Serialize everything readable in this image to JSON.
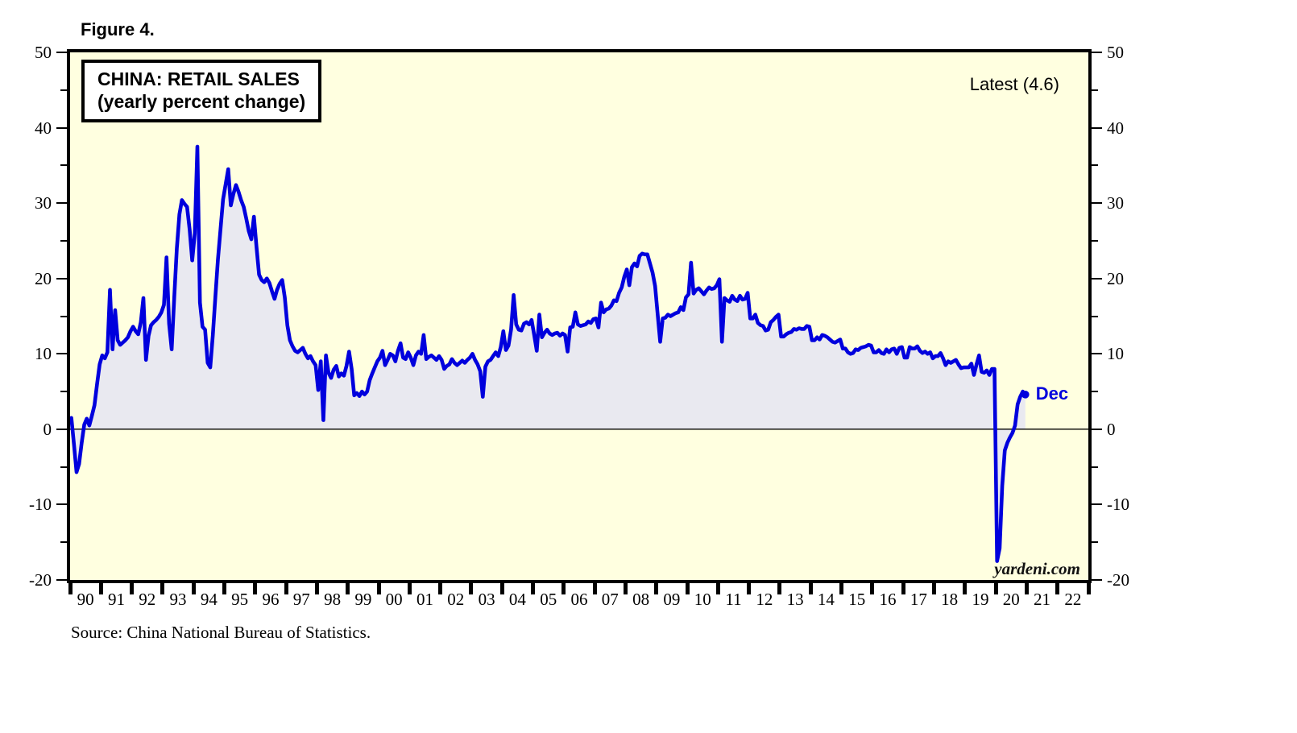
{
  "figure_label": "Figure 4.",
  "source_note": "Source: China National Bureau of Statistics.",
  "chart_data": {
    "type": "line",
    "title": "CHINA: RETAIL SALES",
    "subtitle": "(yearly percent change)",
    "annotation_latest": "Latest (4.6)",
    "latest_value": 4.6,
    "last_point_label": "Dec",
    "watermark": "yardeni.com",
    "legend": "none",
    "grid": "zero baseline only",
    "ylim": [
      -20,
      50
    ],
    "y_major_tick_step": 10,
    "y_minor_tick_step": 5,
    "y_major_ticks": [
      50,
      40,
      30,
      20,
      10,
      0,
      -10,
      -20
    ],
    "x_range_years": [
      1990,
      2023
    ],
    "x_tick_labels": [
      "90",
      "91",
      "92",
      "93",
      "94",
      "95",
      "96",
      "97",
      "98",
      "99",
      "00",
      "01",
      "02",
      "03",
      "04",
      "05",
      "06",
      "07",
      "08",
      "09",
      "10",
      "11",
      "12",
      "13",
      "14",
      "15",
      "16",
      "17",
      "18",
      "19",
      "20",
      "21",
      "22"
    ],
    "colors": {
      "line": "#0000DD",
      "fill": "#E9E9F0",
      "plot_bg": "#FFFFE0",
      "axis": "#000000",
      "label_blue": "#0000DD"
    },
    "series": [
      {
        "name": "China retail sales (yearly percent change)",
        "unit": "percent",
        "frequency": "monthly",
        "start": "1990-01",
        "end": "2020-12",
        "values_by_year": {
          "1990": [
            1.5,
            -2.0,
            -5.7,
            -4.6,
            -1.8,
            0.6,
            1.4,
            0.5,
            1.8,
            3.2,
            6.0,
            8.6
          ],
          "1991": [
            9.8,
            9.4,
            10.2,
            18.5,
            10.6,
            15.8,
            11.8,
            11.2,
            11.5,
            11.8,
            12.2,
            13.0
          ],
          "1992": [
            13.6,
            13.0,
            12.6,
            14.2,
            17.4,
            9.2,
            12.4,
            13.8,
            14.2,
            14.5,
            14.9,
            15.5
          ],
          "1993": [
            16.5,
            22.8,
            14.0,
            10.6,
            17.5,
            24.0,
            28.5,
            30.4,
            29.9,
            29.5,
            26.5,
            22.4
          ],
          "1994": [
            26.0,
            37.5,
            16.8,
            13.6,
            13.2,
            8.8,
            8.2,
            12.5,
            17.5,
            22.5,
            26.5,
            30.5
          ],
          "1995": [
            32.5,
            34.5,
            29.7,
            31.2,
            32.4,
            31.5,
            30.4,
            29.5,
            28.0,
            26.3,
            25.2,
            28.2
          ],
          "1996": [
            24.2,
            20.5,
            19.8,
            19.5,
            20.0,
            19.4,
            18.3,
            17.3,
            18.5,
            19.3,
            19.8,
            17.5
          ],
          "1997": [
            13.8,
            11.8,
            11.0,
            10.4,
            10.2,
            10.5,
            10.8,
            10.0,
            9.4,
            9.7,
            9.0,
            8.5
          ],
          "1998": [
            5.2,
            9.0,
            1.2,
            9.8,
            7.5,
            6.8,
            7.9,
            8.4,
            7.0,
            7.4,
            7.1,
            8.4
          ],
          "1999": [
            10.3,
            8.0,
            4.5,
            4.8,
            4.4,
            5.0,
            4.6,
            5.0,
            6.5,
            7.4,
            8.2,
            9.0
          ],
          "2000": [
            9.5,
            10.4,
            8.5,
            9.2,
            10.0,
            9.8,
            9.0,
            10.4,
            11.4,
            9.5,
            9.3,
            10.2
          ],
          "2001": [
            9.5,
            8.5,
            9.8,
            10.3,
            10.0,
            12.5,
            9.3,
            9.6,
            9.8,
            9.5,
            9.2,
            9.7
          ],
          "2002": [
            9.2,
            8.0,
            8.4,
            8.6,
            9.3,
            8.8,
            8.5,
            8.8,
            9.1,
            8.8,
            9.2,
            9.5
          ],
          "2003": [
            10.0,
            9.2,
            8.6,
            7.7,
            4.3,
            8.3,
            9.0,
            9.2,
            9.7,
            10.2,
            9.7,
            10.9
          ],
          "2004": [
            13.0,
            10.5,
            11.1,
            13.2,
            17.8,
            13.9,
            13.2,
            13.1,
            14.0,
            14.2,
            13.9,
            14.5
          ],
          "2005": [
            12.5,
            10.4,
            15.2,
            12.2,
            12.8,
            13.2,
            12.7,
            12.5,
            12.7,
            12.8,
            12.4,
            12.7
          ],
          "2006": [
            12.5,
            10.3,
            13.5,
            13.6,
            15.5,
            13.9,
            13.7,
            13.8,
            13.9,
            14.3,
            14.1,
            14.6
          ],
          "2007": [
            14.7,
            13.5,
            16.8,
            15.5,
            15.9,
            16.0,
            16.4,
            17.1,
            17.0,
            18.1,
            18.8,
            20.2
          ],
          "2008": [
            21.2,
            19.1,
            21.5,
            22.0,
            21.6,
            23.0,
            23.3,
            23.2,
            23.2,
            22.0,
            20.8,
            19.0
          ],
          "2009": [
            15.2,
            11.6,
            14.7,
            14.8,
            15.2,
            15.0,
            15.2,
            15.4,
            15.5,
            16.2,
            15.8,
            17.5
          ],
          "2010": [
            17.9,
            22.1,
            18.0,
            18.5,
            18.7,
            18.3,
            17.9,
            18.4,
            18.8,
            18.6,
            18.7,
            19.1
          ],
          "2011": [
            19.9,
            11.6,
            17.4,
            17.1,
            16.9,
            17.7,
            17.2,
            17.0,
            17.7,
            17.2,
            17.3,
            18.1
          ],
          "2012": [
            14.7,
            14.7,
            15.2,
            14.1,
            13.8,
            13.7,
            13.1,
            13.2,
            14.2,
            14.5,
            14.9,
            15.2
          ],
          "2013": [
            12.3,
            12.3,
            12.6,
            12.8,
            12.9,
            13.3,
            13.2,
            13.4,
            13.3,
            13.3,
            13.7,
            13.6
          ],
          "2014": [
            11.8,
            11.8,
            12.2,
            11.9,
            12.5,
            12.4,
            12.2,
            11.9,
            11.6,
            11.5,
            11.7,
            11.9
          ],
          "2015": [
            10.7,
            10.7,
            10.2,
            10.0,
            10.1,
            10.6,
            10.5,
            10.8,
            10.9,
            11.0,
            11.2,
            11.1
          ],
          "2016": [
            10.2,
            10.2,
            10.5,
            10.1,
            10.0,
            10.6,
            10.2,
            10.6,
            10.7,
            10.0,
            10.8,
            10.9
          ],
          "2017": [
            9.5,
            9.5,
            10.9,
            10.7,
            10.7,
            11.0,
            10.4,
            10.1,
            10.3,
            10.0,
            10.2,
            9.4
          ],
          "2018": [
            9.7,
            9.7,
            10.1,
            9.4,
            8.5,
            9.0,
            8.8,
            9.0,
            9.2,
            8.6,
            8.1,
            8.2
          ],
          "2019": [
            8.2,
            8.2,
            8.7,
            7.2,
            8.6,
            9.8,
            7.6,
            7.5,
            7.8,
            7.2,
            8.0,
            8.0
          ],
          "2020": [
            -17.5,
            -15.8,
            -7.5,
            -2.8,
            -1.8,
            -1.1,
            -0.5,
            0.5,
            3.3,
            4.3,
            5.0,
            4.6
          ]
        }
      }
    ]
  }
}
